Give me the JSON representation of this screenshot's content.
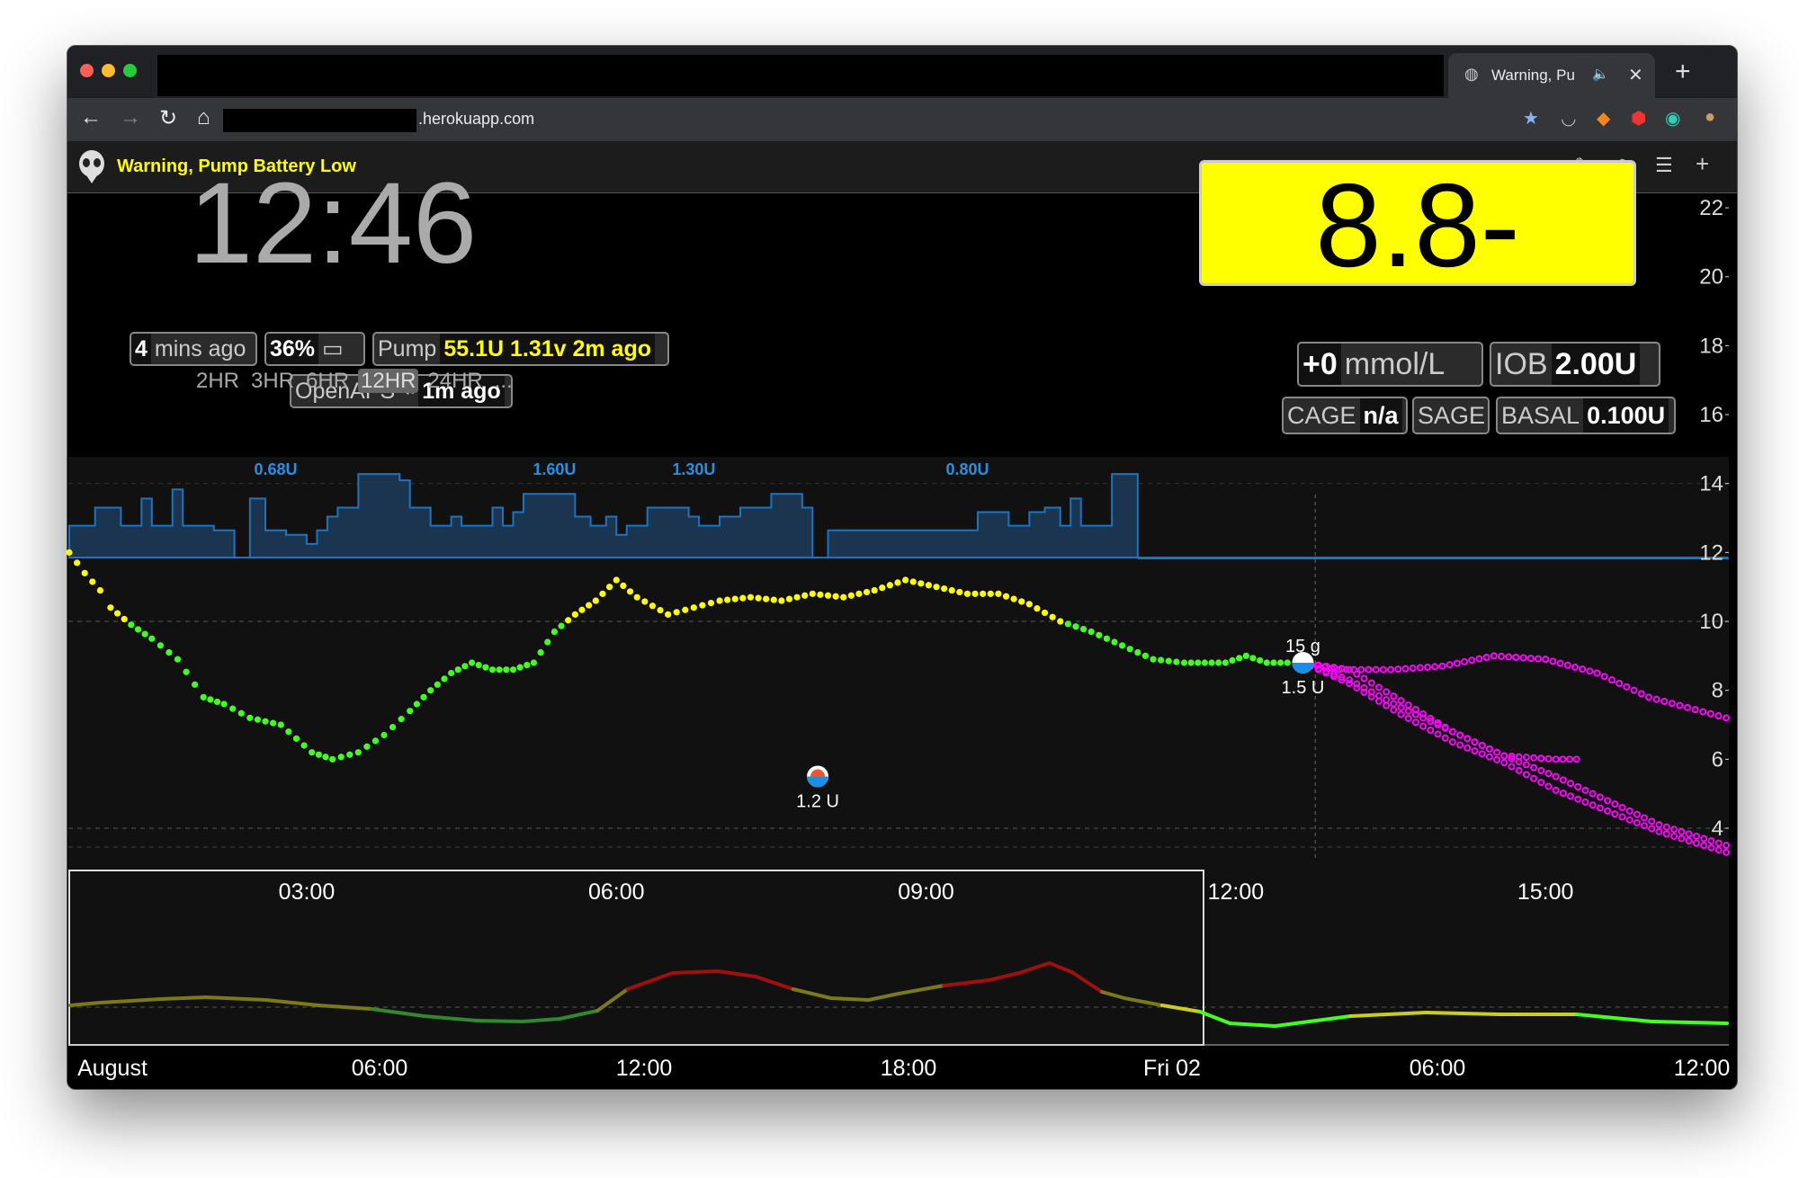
{
  "browser": {
    "tab_title": "Warning, Pu",
    "url_suffix": ".herokuapp.com"
  },
  "app": {
    "alarm_title": "Warning, Pump Battery Low"
  },
  "status": {
    "time": "12:46",
    "last_reading_value": "4",
    "last_reading_label": "mins ago",
    "uploader_battery": "36%",
    "pump_label": "Pump",
    "pump_value": "55.1U 1.31v 2m ago",
    "loop_label": "OpenAPS ⌁",
    "loop_value": "1m ago",
    "ranges": [
      "2HR",
      "3HR",
      "6HR",
      "12HR",
      "24HR",
      "..."
    ],
    "selected_range": "12HR"
  },
  "bg": {
    "value": "8.8",
    "direction": "-",
    "delta": "+0",
    "units": "mmol/L",
    "iob_label": "IOB",
    "iob_value": "2.00U",
    "cage_label": "CAGE",
    "cage_value": "n/a",
    "sage_label": "SAGE",
    "basal_label": "BASAL",
    "basal_value": "0.100U"
  },
  "colors": {
    "alarm_yellow": "#ffff00",
    "bg_in_range": "#44ff22",
    "bg_high": "#ffff00",
    "prediction": "#ff00ff",
    "basal": "#1e73be",
    "focus_normal": "#7a7a1a",
    "focus_high": "#a01010",
    "focus_low": "#2f8a2f"
  },
  "chart_data": {
    "type": "scatter",
    "y_ticks": [
      "4",
      "6",
      "8",
      "10",
      "12",
      "14",
      "16",
      "18",
      "20",
      "22"
    ],
    "ylim": [
      3,
      23
    ],
    "x_ticks": [
      "03:00",
      "06:00",
      "09:00",
      "12:00",
      "15:00"
    ],
    "xlim_hours": [
      0.7,
      16.75
    ],
    "now_hour": 12.77,
    "basal_labels": [
      {
        "hour": 2.7,
        "text": "0.68U"
      },
      {
        "hour": 5.4,
        "text": "1.60U"
      },
      {
        "hour": 6.75,
        "text": "1.30U"
      },
      {
        "hour": 9.4,
        "text": "0.80U"
      }
    ],
    "basal_steps": [
      {
        "x": 0.7,
        "v": 0.35
      },
      {
        "x": 0.95,
        "v": 0.55
      },
      {
        "x": 1.2,
        "v": 0.35
      },
      {
        "x": 1.4,
        "v": 0.65
      },
      {
        "x": 1.5,
        "v": 0.35
      },
      {
        "x": 1.7,
        "v": 0.75
      },
      {
        "x": 1.8,
        "v": 0.35
      },
      {
        "x": 2.1,
        "v": 0.3
      },
      {
        "x": 2.3,
        "v": 0.0
      },
      {
        "x": 2.45,
        "v": 0.65
      },
      {
        "x": 2.6,
        "v": 0.3
      },
      {
        "x": 2.8,
        "v": 0.25
      },
      {
        "x": 3.0,
        "v": 0.15
      },
      {
        "x": 3.1,
        "v": 0.3
      },
      {
        "x": 3.2,
        "v": 0.45
      },
      {
        "x": 3.3,
        "v": 0.55
      },
      {
        "x": 3.5,
        "v": 0.92
      },
      {
        "x": 3.9,
        "v": 0.85
      },
      {
        "x": 4.0,
        "v": 0.55
      },
      {
        "x": 4.2,
        "v": 0.35
      },
      {
        "x": 4.4,
        "v": 0.45
      },
      {
        "x": 4.5,
        "v": 0.35
      },
      {
        "x": 4.8,
        "v": 0.55
      },
      {
        "x": 4.9,
        "v": 0.35
      },
      {
        "x": 5.0,
        "v": 0.5
      },
      {
        "x": 5.1,
        "v": 0.7
      },
      {
        "x": 5.6,
        "v": 0.45
      },
      {
        "x": 5.75,
        "v": 0.35
      },
      {
        "x": 5.9,
        "v": 0.45
      },
      {
        "x": 6.0,
        "v": 0.25
      },
      {
        "x": 6.1,
        "v": 0.35
      },
      {
        "x": 6.3,
        "v": 0.55
      },
      {
        "x": 6.7,
        "v": 0.45
      },
      {
        "x": 6.8,
        "v": 0.35
      },
      {
        "x": 7.0,
        "v": 0.45
      },
      {
        "x": 7.2,
        "v": 0.55
      },
      {
        "x": 7.5,
        "v": 0.7
      },
      {
        "x": 7.8,
        "v": 0.55
      },
      {
        "x": 7.9,
        "v": 0.0
      },
      {
        "x": 8.05,
        "v": 0.3
      },
      {
        "x": 9.5,
        "v": 0.5
      },
      {
        "x": 9.8,
        "v": 0.35
      },
      {
        "x": 10.0,
        "v": 0.5
      },
      {
        "x": 10.15,
        "v": 0.55
      },
      {
        "x": 10.3,
        "v": 0.35
      },
      {
        "x": 10.4,
        "v": 0.65
      },
      {
        "x": 10.5,
        "v": 0.35
      },
      {
        "x": 10.8,
        "v": 0.92
      },
      {
        "x": 11.05,
        "v": 0.0
      },
      {
        "x": 16.75,
        "v": 0.0
      }
    ],
    "treatments": [
      {
        "hour": 7.95,
        "bg": 5.5,
        "insulin": "1.2 U",
        "carbs": ""
      },
      {
        "hour": 12.65,
        "bg": 8.8,
        "insulin": "1.5 U",
        "carbs": "15 g"
      }
    ],
    "series": [
      {
        "name": "",
        "points": [
          [
            0.7,
            12.0
          ],
          [
            0.85,
            11.4
          ],
          [
            1.0,
            10.9
          ],
          [
            1.1,
            10.4
          ],
          [
            1.3,
            9.9
          ],
          [
            1.5,
            9.5
          ],
          [
            1.75,
            8.9
          ],
          [
            2.0,
            7.8
          ],
          [
            2.2,
            7.6
          ],
          [
            2.45,
            7.2
          ],
          [
            2.75,
            7.0
          ],
          [
            3.05,
            6.2
          ],
          [
            3.25,
            6.0
          ],
          [
            3.5,
            6.2
          ],
          [
            3.75,
            6.7
          ],
          [
            4.0,
            7.4
          ],
          [
            4.2,
            8.0
          ],
          [
            4.4,
            8.5
          ],
          [
            4.6,
            8.8
          ],
          [
            4.8,
            8.6
          ],
          [
            5.0,
            8.6
          ],
          [
            5.2,
            8.8
          ],
          [
            5.4,
            9.7
          ],
          [
            5.6,
            10.2
          ],
          [
            5.8,
            10.6
          ],
          [
            6.0,
            11.2
          ],
          [
            6.2,
            10.7
          ],
          [
            6.5,
            10.2
          ],
          [
            6.75,
            10.4
          ],
          [
            7.0,
            10.6
          ],
          [
            7.3,
            10.7
          ],
          [
            7.6,
            10.6
          ],
          [
            7.9,
            10.8
          ],
          [
            8.2,
            10.7
          ],
          [
            8.5,
            10.9
          ],
          [
            8.8,
            11.2
          ],
          [
            9.1,
            11.0
          ],
          [
            9.4,
            10.8
          ],
          [
            9.7,
            10.8
          ],
          [
            10.0,
            10.5
          ],
          [
            10.3,
            10.0
          ],
          [
            10.6,
            9.7
          ],
          [
            10.9,
            9.3
          ],
          [
            11.2,
            8.9
          ],
          [
            11.5,
            8.8
          ],
          [
            11.9,
            8.8
          ],
          [
            12.1,
            9.0
          ],
          [
            12.3,
            8.8
          ],
          [
            12.5,
            8.8
          ]
        ]
      },
      {
        "name": "",
        "predicted": true,
        "lines": [
          [
            [
              12.65,
              8.8
            ],
            [
              13.1,
              8.3
            ],
            [
              13.6,
              7.5
            ],
            [
              14.1,
              6.8
            ],
            [
              14.6,
              6.1
            ],
            [
              15.1,
              5.5
            ],
            [
              15.6,
              4.8
            ],
            [
              16.1,
              4.1
            ],
            [
              16.75,
              3.5
            ]
          ],
          [
            [
              12.65,
              8.8
            ],
            [
              13.1,
              8.2
            ],
            [
              13.6,
              7.3
            ],
            [
              14.1,
              6.5
            ],
            [
              14.6,
              5.9
            ],
            [
              15.1,
              5.1
            ],
            [
              15.6,
              4.5
            ],
            [
              16.1,
              3.9
            ],
            [
              16.75,
              3.3
            ]
          ],
          [
            [
              12.65,
              8.8
            ],
            [
              13.1,
              8.6
            ],
            [
              13.6,
              7.7
            ],
            [
              14.1,
              6.8
            ],
            [
              14.6,
              6.1
            ],
            [
              15.1,
              6.0
            ],
            [
              15.3,
              6.0
            ]
          ],
          [
            [
              12.65,
              8.8
            ],
            [
              13.0,
              8.6
            ],
            [
              13.5,
              8.6
            ],
            [
              14.0,
              8.7
            ],
            [
              14.5,
              9.0
            ],
            [
              15.0,
              8.9
            ],
            [
              15.5,
              8.5
            ],
            [
              16.0,
              7.8
            ],
            [
              16.75,
              7.2
            ]
          ]
        ]
      }
    ],
    "focus_x_ticks": [
      "August",
      "06:00",
      "12:00",
      "18:00",
      "Fri 02",
      "06:00",
      "12:00"
    ]
  }
}
